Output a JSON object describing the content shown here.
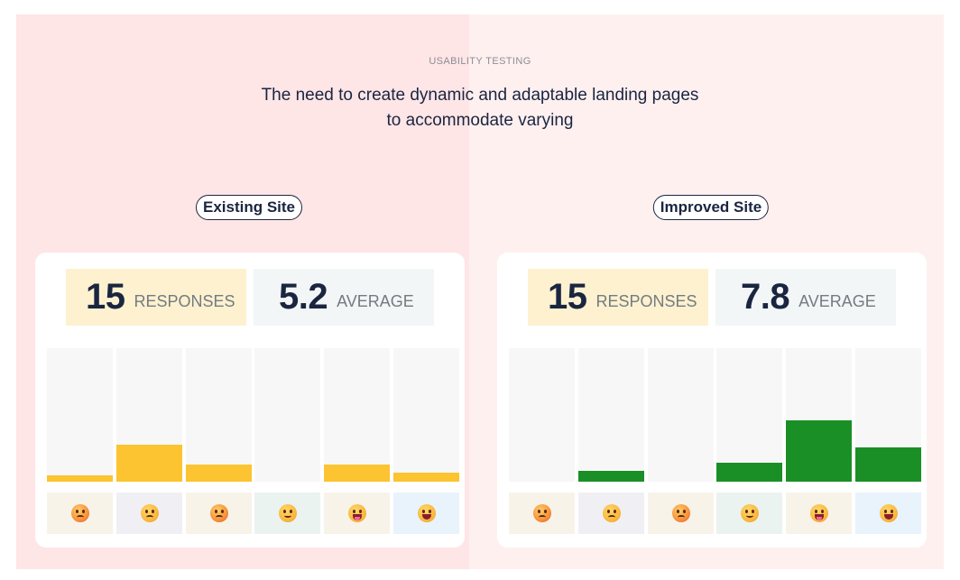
{
  "header": {
    "eyebrow": "USABILITY TESTING",
    "headline_line1": "The need to create dynamic and adaptable landing pages",
    "headline_line2": "to accommodate varying"
  },
  "colors": {
    "panel_left": "#fee5e6",
    "panel_right": "#fff0f0",
    "existing_bar": "#fbc430",
    "improved_bar": "#1a8f25",
    "ink": "#1a2540"
  },
  "face_icons": [
    "tired-face-icon",
    "frowning-face-icon",
    "worried-face-icon",
    "slightly-smiling-face-icon",
    "grinning-tongue-face-icon",
    "smiling-face-icon"
  ],
  "face_tile_colors": [
    "#f8f3e9",
    "#f0f0f4",
    "#f8f3e9",
    "#eaf3ef",
    "#f8f3e9",
    "#e8f3fc"
  ],
  "existing": {
    "label": "Existing Site",
    "responses_value": "15",
    "responses_label": "RESPONSES",
    "average_value": "5.2",
    "average_label": "AVERAGE",
    "bar_levels": [
      0.05,
      0.28,
      0.13,
      0,
      0.13,
      0.07
    ]
  },
  "improved": {
    "label": "Improved Site",
    "responses_value": "15",
    "responses_label": "RESPONSES",
    "average_value": "7.8",
    "average_label": "AVERAGE",
    "bar_levels": [
      0,
      0.08,
      0,
      0.14,
      0.46,
      0.26
    ]
  }
}
